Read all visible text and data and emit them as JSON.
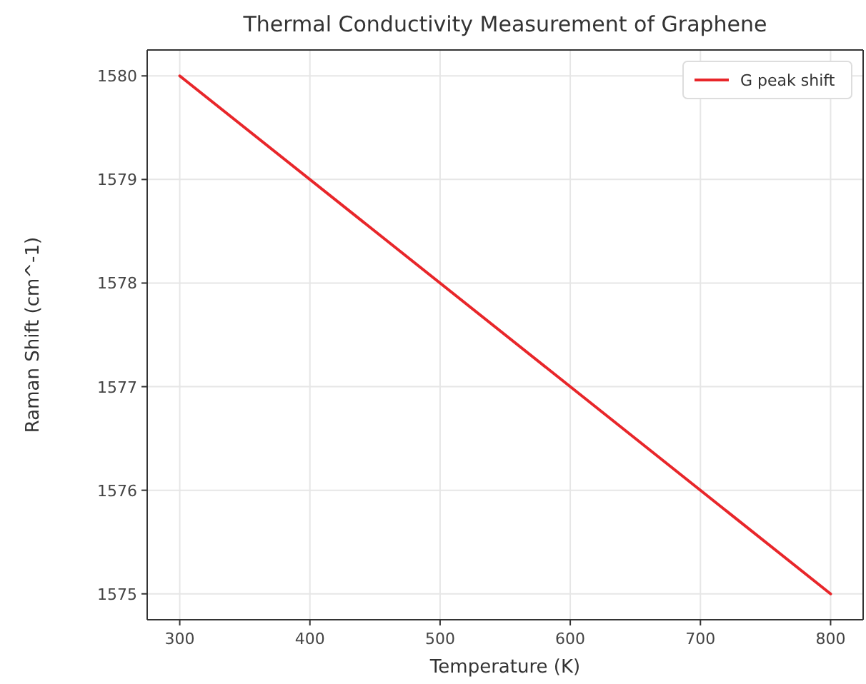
{
  "chart_data": {
    "type": "line",
    "title": "Thermal Conductivity Measurement of Graphene",
    "xlabel": "Temperature (K)",
    "ylabel": "Raman Shift (cm^-1)",
    "x": [
      300,
      800
    ],
    "series": [
      {
        "name": "G peak shift",
        "color": "#e8262a",
        "values": [
          1580,
          1575
        ]
      }
    ],
    "xlim": [
      275,
      825
    ],
    "xticks": [
      300,
      400,
      500,
      600,
      700,
      800
    ],
    "ylim": [
      1574.75,
      1580.25
    ],
    "yticks": [
      1575,
      1576,
      1577,
      1578,
      1579,
      1580
    ],
    "grid": true,
    "legend": "top right",
    "line_style": "solid",
    "marker": "none"
  }
}
